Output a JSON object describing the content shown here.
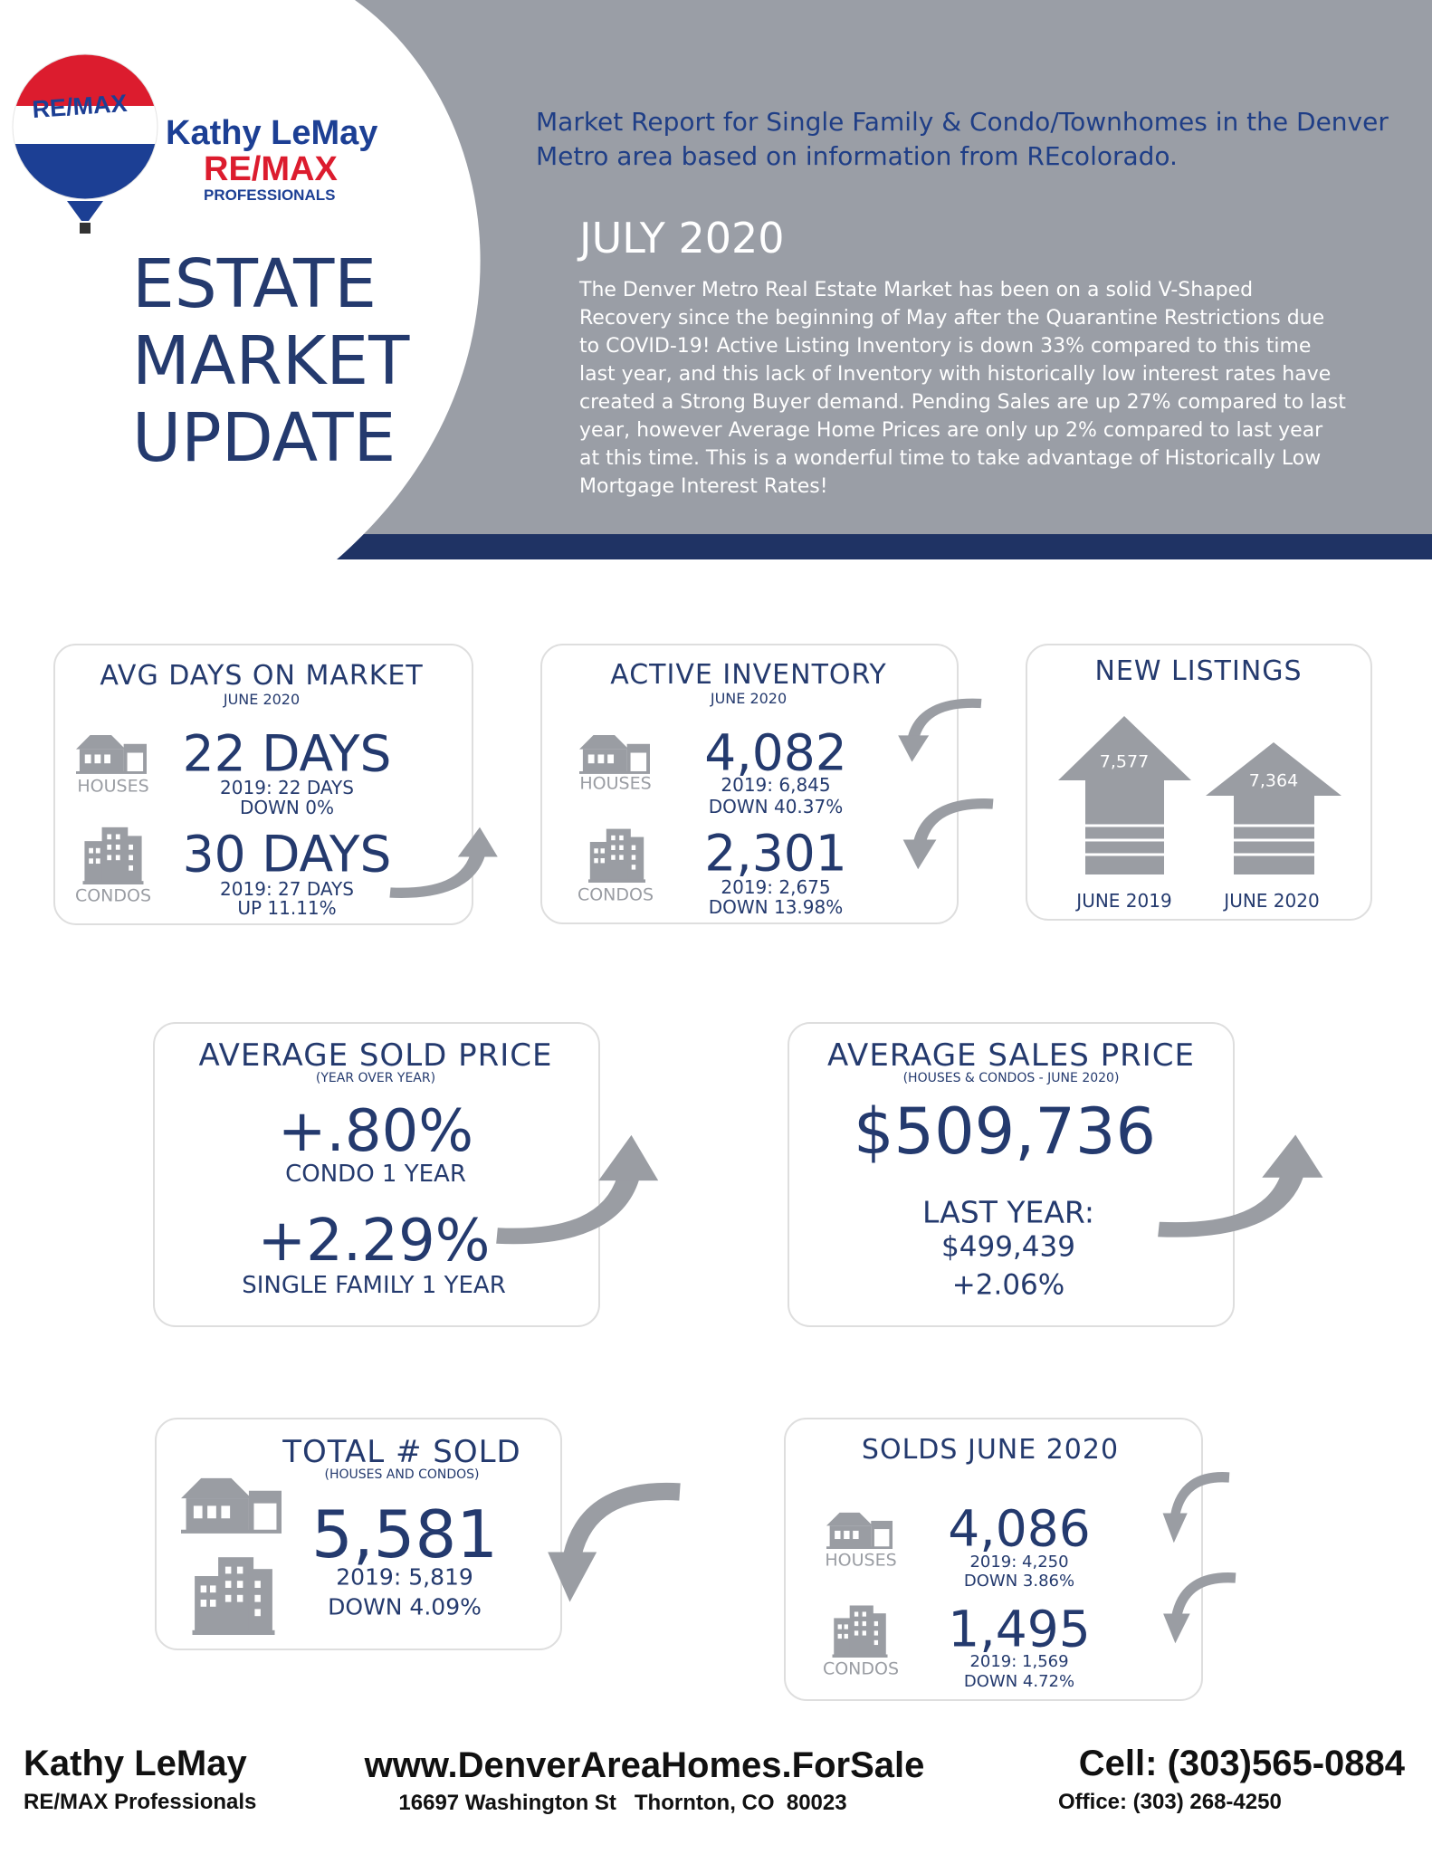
{
  "logo": {
    "badge": "RE/MAX",
    "agent": "Kathy LeMay",
    "brand": "RE/MAX",
    "office": "PROFESSIONALS"
  },
  "header": {
    "headline": [
      "ESTATE",
      "MARKET",
      "UPDATE"
    ],
    "intro": "Market Report for Single Family & Condo/Townhomes in the Denver Metro area based on information from REcolorado.",
    "month": "JULY 2020",
    "summary": "The Denver Metro Real Estate Market has been on a solid V-Shaped Recovery since the beginning of May after the Quarantine Restrictions due to COVID-19! Active Listing Inventory is down 33% compared to this time last year, and this lack of Inventory with historically low interest rates have created a Strong Buyer demand. Pending Sales are up 27% compared to last year, however Average Home Prices are only up 2% compared to last year at this time. This is a wonderful time to take advantage of Historically Low Mortgage Interest Rates!"
  },
  "days_on_market": {
    "title": "AVG DAYS ON MARKET",
    "period": "JUNE 2020",
    "houses": {
      "label": "HOUSES",
      "value": "22 DAYS",
      "prior": "2019: 22 DAYS",
      "change": "DOWN 0%"
    },
    "condos": {
      "label": "CONDOS",
      "value": "30 DAYS",
      "prior": "2019: 27 DAYS",
      "change": "UP 11.11%"
    }
  },
  "active_inventory": {
    "title": "ACTIVE INVENTORY",
    "period": "JUNE 2020",
    "houses": {
      "label": "HOUSES",
      "value": "4,082",
      "prior": "2019: 6,845",
      "change": "DOWN 40.37%"
    },
    "condos": {
      "label": "CONDOS",
      "value": "2,301",
      "prior": "2019: 2,675",
      "change": "DOWN 13.98%"
    }
  },
  "new_listings": {
    "title": "NEW LISTINGS",
    "bars": [
      {
        "label": "JUNE 2019",
        "value": "7,577"
      },
      {
        "label": "JUNE 2020",
        "value": "7,364"
      }
    ]
  },
  "avg_sold_price": {
    "title": "AVERAGE SOLD PRICE",
    "note": "(YEAR OVER YEAR)",
    "condo": {
      "value": "+.80%",
      "label": "CONDO 1 YEAR"
    },
    "single_family": {
      "value": "+2.29%",
      "label": "SINGLE FAMILY 1 YEAR"
    }
  },
  "avg_sales_price": {
    "title": "AVERAGE SALES PRICE",
    "note": "(HOUSES & CONDOS - JUNE 2020)",
    "value": "$509,736",
    "last_year_label": "LAST YEAR:",
    "last_year": "$499,439",
    "change": "+2.06%"
  },
  "total_sold": {
    "title": "TOTAL # SOLD",
    "note": "(HOUSES AND CONDOS)",
    "value": "5,581",
    "prior": "2019: 5,819",
    "change": "DOWN 4.09%"
  },
  "solds": {
    "title": "SOLDS JUNE 2020",
    "houses": {
      "label": "HOUSES",
      "value": "4,086",
      "prior": "2019: 4,250",
      "change": "DOWN 3.86%"
    },
    "condos": {
      "label": "CONDOS",
      "value": "1,495",
      "prior": "2019: 1,569",
      "change": "DOWN 4.72%"
    }
  },
  "footer": {
    "agent": "Kathy LeMay",
    "office": "RE/MAX Professionals",
    "website": "www.DenverAreaHomes.ForSale",
    "address": "16697 Washington St   Thornton, CO  80023",
    "cell": "Cell: (303)565-0884",
    "phone": "Office: (303) 268-4250"
  }
}
